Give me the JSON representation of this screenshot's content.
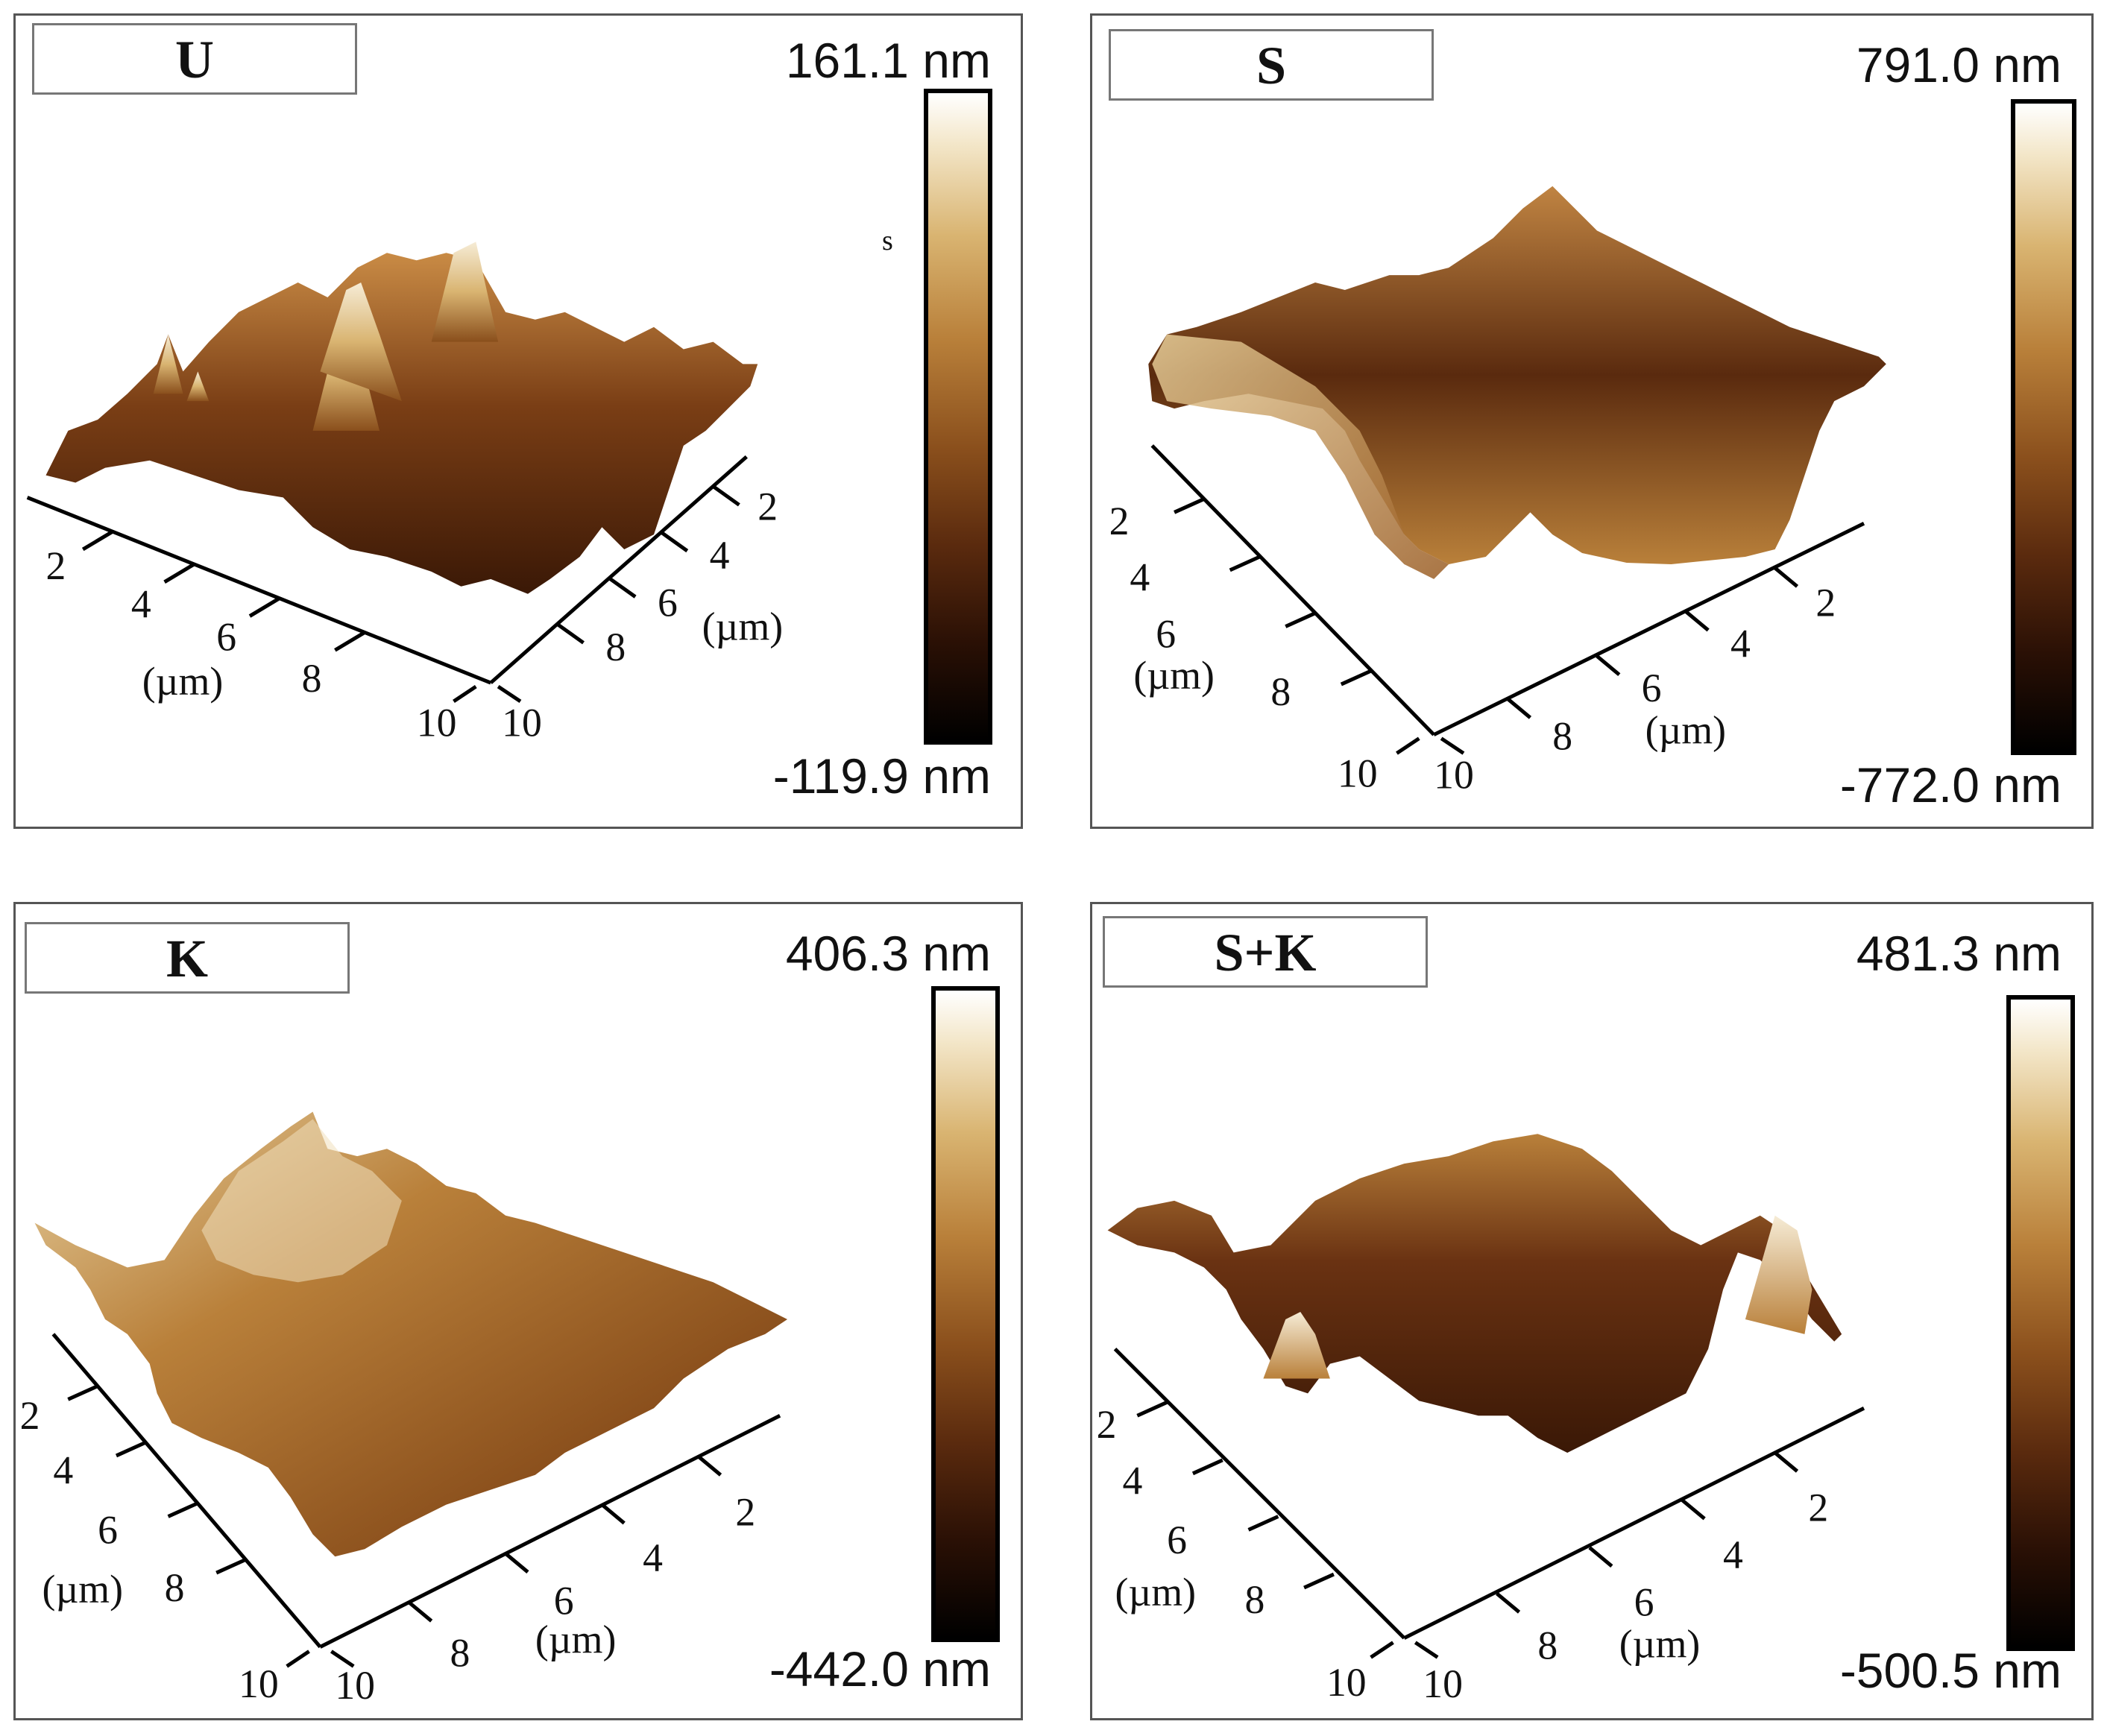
{
  "panels": [
    {
      "id": "U",
      "label": "U",
      "max": "161.1 nm",
      "min": "-119.9 nm",
      "left_axis": [
        "2",
        "4",
        "6",
        "8",
        "10"
      ],
      "right_axis": [
        "2",
        "4",
        "6",
        "8",
        "10"
      ],
      "unit": "(µm)",
      "stray": "s"
    },
    {
      "id": "S",
      "label": "S",
      "max": "791.0 nm",
      "min": "-772.0 nm",
      "left_axis": [
        "2",
        "4",
        "6",
        "8",
        "10"
      ],
      "right_axis": [
        "2",
        "4",
        "6",
        "8",
        "10"
      ],
      "unit": "(µm)"
    },
    {
      "id": "K",
      "label": "K",
      "max": "406.3 nm",
      "min": "-442.0 nm",
      "left_axis": [
        "2",
        "4",
        "6",
        "8",
        "10"
      ],
      "right_axis": [
        "2",
        "4",
        "6",
        "8",
        "10"
      ],
      "unit": "(µm)"
    },
    {
      "id": "SK",
      "label": "S+K",
      "max": "481.3 nm",
      "min": "-500.5 nm",
      "left_axis": [
        "2",
        "4",
        "6",
        "8",
        "10"
      ],
      "right_axis": [
        "2",
        "4",
        "6",
        "8",
        "10"
      ],
      "unit": "(µm)"
    }
  ],
  "colors": {
    "surface_dark": "#3a1806",
    "surface_mid": "#8a4f1c",
    "surface_light": "#d9b471",
    "highlight": "#f6ecd6"
  }
}
